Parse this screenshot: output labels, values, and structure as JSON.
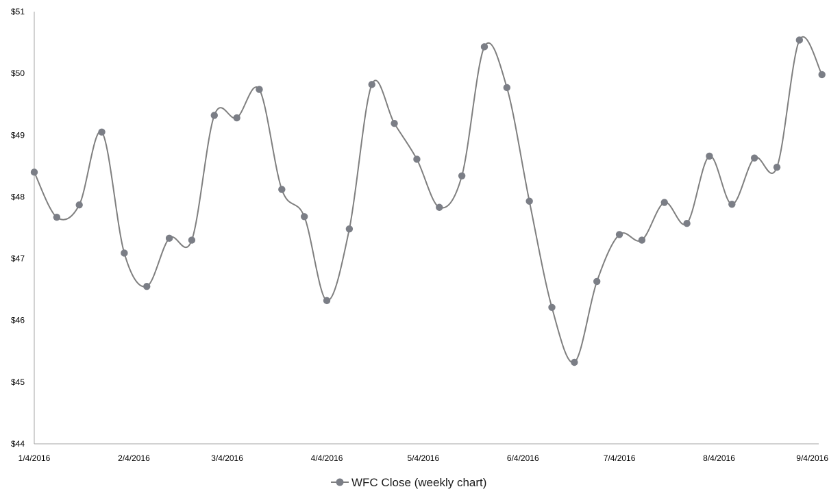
{
  "chart_data": {
    "type": "line",
    "smooth": true,
    "x_start": "2016-01-04",
    "x_end": "2016-09-04",
    "x_ticks": [
      {
        "date": "2016-01-04",
        "label": "1/4/2016"
      },
      {
        "date": "2016-02-04",
        "label": "2/4/2016"
      },
      {
        "date": "2016-03-04",
        "label": "3/4/2016"
      },
      {
        "date": "2016-04-04",
        "label": "4/4/2016"
      },
      {
        "date": "2016-05-04",
        "label": "5/4/2016"
      },
      {
        "date": "2016-06-04",
        "label": "6/4/2016"
      },
      {
        "date": "2016-07-04",
        "label": "7/4/2016"
      },
      {
        "date": "2016-08-04",
        "label": "8/4/2016"
      },
      {
        "date": "2016-09-04",
        "label": "9/4/2016"
      }
    ],
    "ylim": [
      44,
      51
    ],
    "y_ticks": [
      {
        "value": 44,
        "label": "$44"
      },
      {
        "value": 45,
        "label": "$45"
      },
      {
        "value": 46,
        "label": "$46"
      },
      {
        "value": 47,
        "label": "$47"
      },
      {
        "value": 48,
        "label": "$48"
      },
      {
        "value": 49,
        "label": "$49"
      },
      {
        "value": 50,
        "label": "$50"
      },
      {
        "value": 51,
        "label": "$51"
      }
    ],
    "grid": false,
    "legend_position": "bottom",
    "series": [
      {
        "name": "WFC Close (weekly chart)",
        "color": "#7b7e86",
        "line_color": "#7f7f7f",
        "x": [
          "2016-01-04",
          "2016-01-11",
          "2016-01-18",
          "2016-01-25",
          "2016-02-01",
          "2016-02-08",
          "2016-02-15",
          "2016-02-22",
          "2016-02-29",
          "2016-03-07",
          "2016-03-14",
          "2016-03-21",
          "2016-03-28",
          "2016-04-04",
          "2016-04-11",
          "2016-04-18",
          "2016-04-25",
          "2016-05-02",
          "2016-05-09",
          "2016-05-16",
          "2016-05-23",
          "2016-05-30",
          "2016-06-06",
          "2016-06-13",
          "2016-06-20",
          "2016-06-27",
          "2016-07-04",
          "2016-07-11",
          "2016-07-18",
          "2016-07-25",
          "2016-08-01",
          "2016-08-08",
          "2016-08-15",
          "2016-08-22",
          "2016-08-29",
          "2016-09-05"
        ],
        "values": [
          48.4,
          47.67,
          47.87,
          49.05,
          47.09,
          46.55,
          47.33,
          47.3,
          49.32,
          49.28,
          49.74,
          48.12,
          47.68,
          46.32,
          47.48,
          49.82,
          49.19,
          48.61,
          47.83,
          48.34,
          50.43,
          49.77,
          47.93,
          46.21,
          45.32,
          46.63,
          47.39,
          47.3,
          47.91,
          47.57,
          48.66,
          47.88,
          48.63,
          48.48,
          50.54,
          49.98
        ]
      }
    ]
  }
}
